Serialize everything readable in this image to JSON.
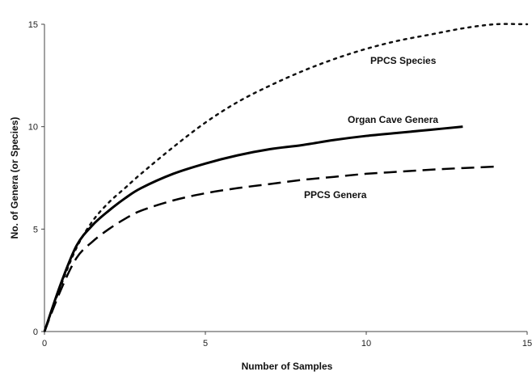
{
  "chart_data": {
    "type": "line",
    "xlabel": "Number of Samples",
    "ylabel": "No. of Genera (or Species)",
    "xlim": [
      0,
      15
    ],
    "ylim": [
      0,
      15
    ],
    "x_ticks": [
      "0",
      "5",
      "10",
      "15"
    ],
    "y_ticks": [
      "0",
      "5",
      "10",
      "15"
    ],
    "grid": false,
    "series": [
      {
        "name": "PPCS Species",
        "style": "dotted",
        "color": "#111111",
        "x": [
          0,
          0.5,
          1,
          1.5,
          2,
          2.5,
          3,
          4,
          5,
          6,
          7,
          8,
          9,
          10,
          11,
          12,
          13,
          14,
          15
        ],
        "y": [
          0,
          2.2,
          4.1,
          5.4,
          6.3,
          7.0,
          7.7,
          9.0,
          10.2,
          11.2,
          12.0,
          12.7,
          13.3,
          13.8,
          14.2,
          14.5,
          14.8,
          15.0,
          15.0
        ]
      },
      {
        "name": "Organ Cave Genera",
        "style": "solid",
        "color": "#000000",
        "x": [
          0,
          0.5,
          1,
          1.5,
          2,
          2.5,
          3,
          4,
          5,
          6,
          7,
          8,
          9,
          10,
          11,
          12,
          13
        ],
        "y": [
          0,
          2.3,
          4.2,
          5.2,
          5.9,
          6.5,
          7.0,
          7.7,
          8.2,
          8.6,
          8.9,
          9.1,
          9.35,
          9.55,
          9.7,
          9.85,
          10.0
        ]
      },
      {
        "name": "PPCS Genera",
        "style": "dashed",
        "color": "#000000",
        "x": [
          0,
          0.5,
          1,
          1.5,
          2,
          2.5,
          3,
          4,
          5,
          6,
          7,
          8,
          9,
          10,
          11,
          12,
          13,
          14
        ],
        "y": [
          0,
          2.0,
          3.6,
          4.4,
          5.0,
          5.5,
          5.9,
          6.4,
          6.75,
          7.0,
          7.2,
          7.4,
          7.55,
          7.7,
          7.8,
          7.9,
          7.98,
          8.05
        ]
      }
    ]
  }
}
